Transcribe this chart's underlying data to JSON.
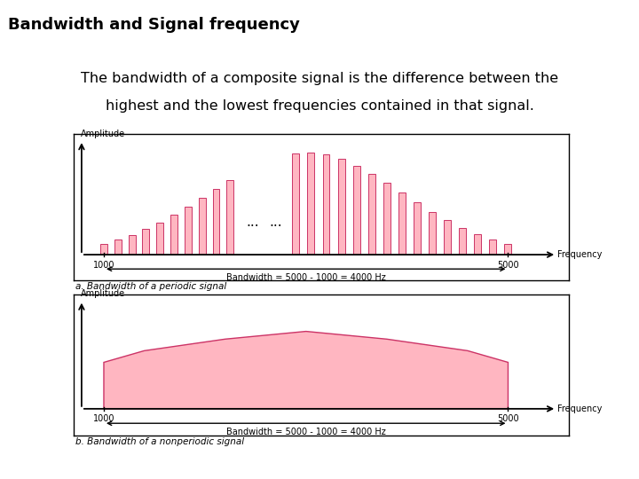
{
  "title": "Bandwidth and Signal frequency",
  "title_bg": "#33CCFF",
  "subtitle_line1": "The bandwidth of a composite signal is the difference between the",
  "subtitle_line2": "highest and the lowest frequencies contained in that signal.",
  "subtitle_bg": "#99FF33",
  "fig_bg": "#FFFFFF",
  "box_bg": "#FFFFFF",
  "bar_fill": "#FFB6C1",
  "bar_edge": "#CC3366",
  "label_a": "a. Bandwidth of a periodic signal",
  "label_b": "b. Bandwidth of a nonperiodic signal",
  "bw_label": "Bandwidth = 5000 - 1000 = 4000 Hz",
  "freq_label": "Frequency",
  "amp_label": "Amplitude"
}
